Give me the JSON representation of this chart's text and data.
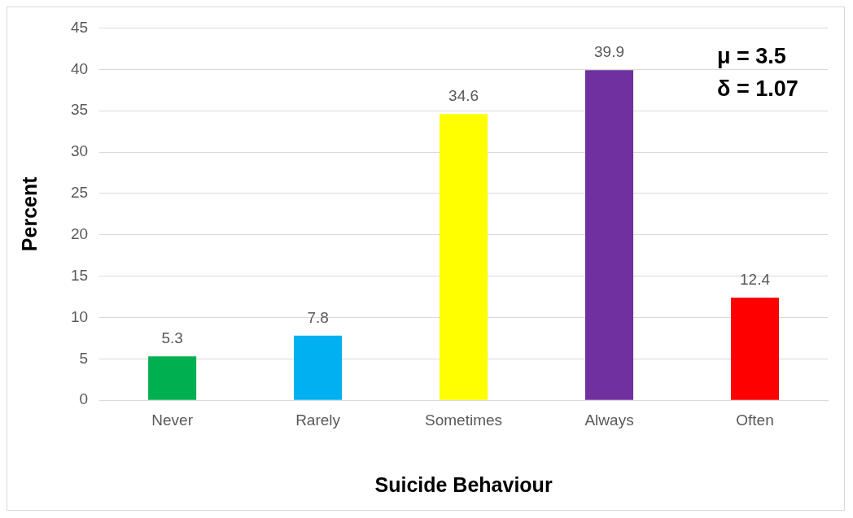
{
  "chart_data": {
    "type": "bar",
    "xlabel": "Suicide Behaviour",
    "ylabel": "Percent",
    "categories": [
      "Never",
      "Rarely",
      "Sometimes",
      "Always",
      "Often"
    ],
    "values": [
      5.3,
      7.8,
      34.6,
      39.9,
      12.4
    ],
    "colors": [
      "#00b050",
      "#00b0f0",
      "#ffff00",
      "#7030a0",
      "#ff0000"
    ],
    "ylim": [
      0,
      45
    ],
    "yticks": [
      0,
      5,
      10,
      15,
      20,
      25,
      30,
      35,
      40,
      45
    ],
    "grid": "y",
    "data_labels": true,
    "legend": false,
    "annotations": [
      "μ = 3.5",
      "δ = 1.07"
    ]
  }
}
